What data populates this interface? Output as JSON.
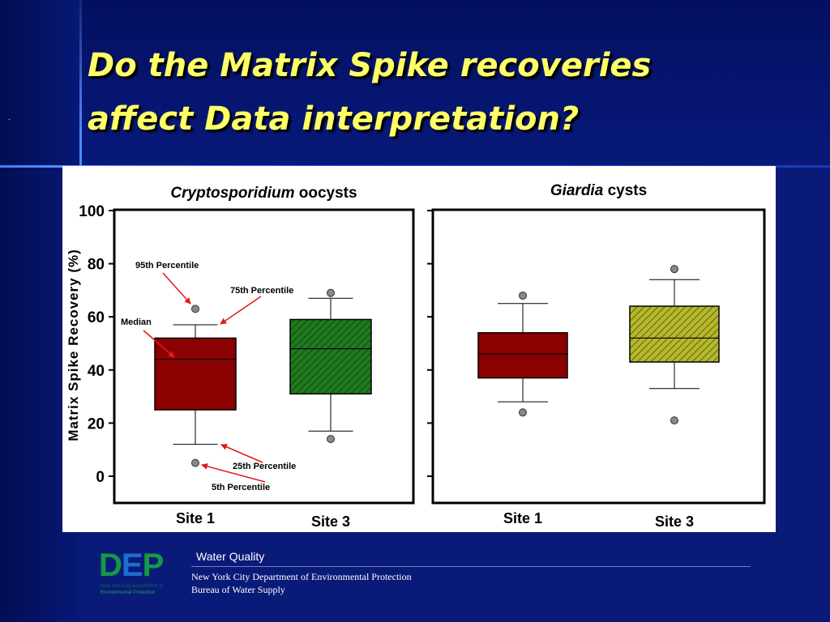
{
  "slide": {
    "title_line1": "Do the Matrix Spike recoveries",
    "title_line2": "affect Data interpretation?",
    "dot": "."
  },
  "footer": {
    "logo_text": "DEP",
    "logo_sub1": "New York City Department of",
    "logo_sub2": "Environmental Protection",
    "heading": "Water Quality",
    "line1": "New York City Department of Environmental Protection",
    "line2": "Bureau of Water Supply"
  },
  "colors": {
    "background": "#0a1a78",
    "title": "#ffff66",
    "site1_box": "#8b0000",
    "crypto_site3_box": "#1f7a1f",
    "giardia_site3_box": "#b5b82a",
    "annotation_arrow": "#e01a1a"
  },
  "chart_data": [
    {
      "type": "box",
      "title_italic": "Cryptosporidium",
      "title_rest": " oocysts",
      "ylabel": "Matrix Spike Recovery (%)",
      "ylim": [
        -10,
        100
      ],
      "yticks": [
        0,
        20,
        40,
        60,
        80,
        100
      ],
      "categories": [
        "Site 1",
        "Site 3"
      ],
      "boxes": [
        {
          "label": "Site 1",
          "p5": 5,
          "p10": 12,
          "q1": 25,
          "median": 44,
          "q3": 52,
          "p90": 57,
          "p95": 63
        },
        {
          "label": "Site 3",
          "p5": 14,
          "p10": 17,
          "q1": 31,
          "median": 48,
          "q3": 59,
          "p90": 67,
          "p95": 69
        }
      ],
      "annotations": {
        "p95": "95th Percentile",
        "q3": "75th Percentile",
        "median": "Median",
        "q1": "25th Percentile",
        "p5": "5th Percentile"
      }
    },
    {
      "type": "box",
      "title_italic": "Giardia",
      "title_rest": " cysts",
      "ylim": [
        -10,
        100
      ],
      "yticks": [
        0,
        20,
        40,
        60,
        80,
        100
      ],
      "categories": [
        "Site 1",
        "Site 3"
      ],
      "boxes": [
        {
          "label": "Site 1",
          "p5": 24,
          "p10": 28,
          "q1": 37,
          "median": 46,
          "q3": 54,
          "p90": 65,
          "p95": 68
        },
        {
          "label": "Site 3",
          "p5": 21,
          "p10": 33,
          "q1": 43,
          "median": 52,
          "q3": 64,
          "p90": 74,
          "p95": 78
        }
      ]
    }
  ]
}
